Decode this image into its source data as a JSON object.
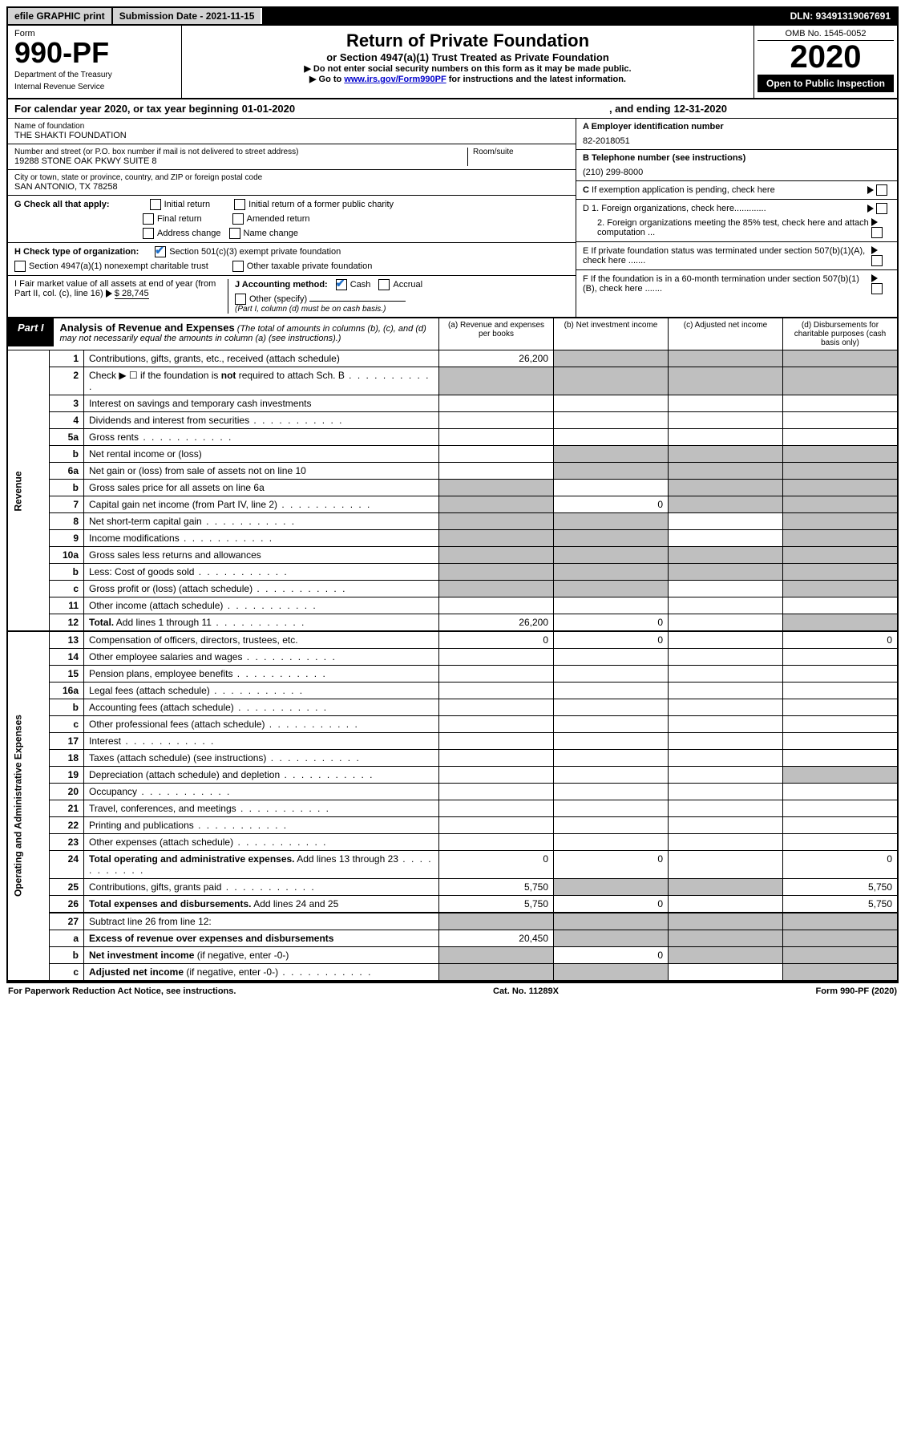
{
  "top": {
    "efile": "efile GRAPHIC print",
    "submission": "Submission Date - 2021-11-15",
    "dln": "DLN: 93491319067691"
  },
  "header": {
    "form_label": "Form",
    "form_number": "990-PF",
    "dept": "Department of the Treasury",
    "irs": "Internal Revenue Service",
    "title": "Return of Private Foundation",
    "subtitle": "or Section 4947(a)(1) Trust Treated as Private Foundation",
    "instr1": "▶ Do not enter social security numbers on this form as it may be made public.",
    "instr2_pre": "▶ Go to ",
    "instr2_link": "www.irs.gov/Form990PF",
    "instr2_post": " for instructions and the latest information.",
    "omb": "OMB No. 1545-0052",
    "year": "2020",
    "open": "Open to Public Inspection"
  },
  "calyear": {
    "pre": "For calendar year 2020, or tax year beginning ",
    "begin": "01-01-2020",
    "mid": " , and ending ",
    "end": "12-31-2020"
  },
  "entity": {
    "name_label": "Name of foundation",
    "name": "THE SHAKTI FOUNDATION",
    "addr_label": "Number and street (or P.O. box number if mail is not delivered to street address)",
    "addr": "19288 STONE OAK PKWY SUITE 8",
    "room_label": "Room/suite",
    "city_label": "City or town, state or province, country, and ZIP or foreign postal code",
    "city": "SAN ANTONIO, TX  78258",
    "ein_label": "A Employer identification number",
    "ein": "82-2018051",
    "phone_label": "B Telephone number (see instructions)",
    "phone": "(210) 299-8000",
    "c_label": "C If exemption application is pending, check here",
    "d1": "D 1. Foreign organizations, check here.............",
    "d2": "2. Foreign organizations meeting the 85% test, check here and attach computation ...",
    "e": "E  If private foundation status was terminated under section 507(b)(1)(A), check here .......",
    "f": "F  If the foundation is in a 60-month termination under section 507(b)(1)(B), check here .......",
    "g_label": "G Check all that apply:",
    "g_initial": "Initial return",
    "g_initial_former": "Initial return of a former public charity",
    "g_final": "Final return",
    "g_amended": "Amended return",
    "g_address": "Address change",
    "g_name": "Name change",
    "h_label": "H Check type of organization:",
    "h_501c3": "Section 501(c)(3) exempt private foundation",
    "h_4947": "Section 4947(a)(1) nonexempt charitable trust",
    "h_other": "Other taxable private foundation",
    "i_label": "I Fair market value of all assets at end of year (from Part II, col. (c), line 16)",
    "i_val": "$  28,745",
    "j_label": "J Accounting method:",
    "j_cash": "Cash",
    "j_accrual": "Accrual",
    "j_other": "Other (specify)",
    "j_note": "(Part I, column (d) must be on cash basis.)"
  },
  "part1": {
    "tab": "Part I",
    "title": "Analysis of Revenue and Expenses",
    "note": " (The total of amounts in columns (b), (c), and (d) may not necessarily equal the amounts in column (a) (see instructions).)",
    "col_a": "(a)  Revenue and expenses per books",
    "col_b": "(b)  Net investment income",
    "col_c": "(c)  Adjusted net income",
    "col_d": "(d)  Disbursements for charitable purposes (cash basis only)"
  },
  "sections": {
    "revenue": "Revenue",
    "expenses": "Operating and Administrative Expenses"
  },
  "rows": [
    {
      "n": "1",
      "d": "Contributions, gifts, grants, etc., received (attach schedule)",
      "a": "26,200",
      "sb": true,
      "sc": true,
      "sd": true
    },
    {
      "n": "2",
      "d": "Check ▶ ☐ if the foundation is <b>not</b> required to attach Sch. B",
      "nod": true,
      "sa": true,
      "sb": true,
      "sc": true,
      "sd": true,
      "dots": true
    },
    {
      "n": "3",
      "d": "Interest on savings and temporary cash investments"
    },
    {
      "n": "4",
      "d": "Dividends and interest from securities",
      "dots": true
    },
    {
      "n": "5a",
      "d": "Gross rents",
      "dots": true
    },
    {
      "n": "b",
      "d": "Net rental income or (loss)",
      "sa": false,
      "sb": true,
      "sc": true,
      "sd": true,
      "under": true
    },
    {
      "n": "6a",
      "d": "Net gain or (loss) from sale of assets not on line 10",
      "sb": true,
      "sc": true,
      "sd": true
    },
    {
      "n": "b",
      "d": "Gross sales price for all assets on line 6a",
      "sa": true,
      "sc": true,
      "sd": true,
      "under": true
    },
    {
      "n": "7",
      "d": "Capital gain net income (from Part IV, line 2)",
      "dots": true,
      "b": "0",
      "sa": true,
      "sc": true,
      "sd": true
    },
    {
      "n": "8",
      "d": "Net short-term capital gain",
      "dots": true,
      "sa": true,
      "sb": true,
      "sd": true
    },
    {
      "n": "9",
      "d": "Income modifications",
      "dots": true,
      "sa": true,
      "sb": true,
      "sd": true
    },
    {
      "n": "10a",
      "d": "Gross sales less returns and allowances",
      "sa": true,
      "sb": true,
      "sc": true,
      "sd": true,
      "under": true
    },
    {
      "n": "b",
      "d": "Less: Cost of goods sold",
      "dots": true,
      "sa": true,
      "sb": true,
      "sc": true,
      "sd": true,
      "under": true
    },
    {
      "n": "c",
      "d": "Gross profit or (loss) (attach schedule)",
      "dots": true,
      "sa": true,
      "sb": true,
      "sd": true
    },
    {
      "n": "11",
      "d": "Other income (attach schedule)",
      "dots": true
    },
    {
      "n": "12",
      "d": "<b>Total.</b> Add lines 1 through 11",
      "dots": true,
      "a": "26,200",
      "b": "0",
      "sd": true,
      "thick": true
    }
  ],
  "exp_rows": [
    {
      "n": "13",
      "d": "Compensation of officers, directors, trustees, etc.",
      "a": "0",
      "b": "0",
      "dv": "0"
    },
    {
      "n": "14",
      "d": "Other employee salaries and wages",
      "dots": true
    },
    {
      "n": "15",
      "d": "Pension plans, employee benefits",
      "dots": true
    },
    {
      "n": "16a",
      "d": "Legal fees (attach schedule)",
      "dots": true
    },
    {
      "n": "b",
      "d": "Accounting fees (attach schedule)",
      "dots": true
    },
    {
      "n": "c",
      "d": "Other professional fees (attach schedule)",
      "dots": true
    },
    {
      "n": "17",
      "d": "Interest",
      "dots": true
    },
    {
      "n": "18",
      "d": "Taxes (attach schedule) (see instructions)",
      "dots": true
    },
    {
      "n": "19",
      "d": "Depreciation (attach schedule) and depletion",
      "dots": true,
      "sd": true
    },
    {
      "n": "20",
      "d": "Occupancy",
      "dots": true
    },
    {
      "n": "21",
      "d": "Travel, conferences, and meetings",
      "dots": true
    },
    {
      "n": "22",
      "d": "Printing and publications",
      "dots": true
    },
    {
      "n": "23",
      "d": "Other expenses (attach schedule)",
      "dots": true
    },
    {
      "n": "24",
      "d": "<b>Total operating and administrative expenses.</b> Add lines 13 through 23",
      "dots": true,
      "a": "0",
      "b": "0",
      "dv": "0"
    },
    {
      "n": "25",
      "d": "Contributions, gifts, grants paid",
      "dots": true,
      "a": "5,750",
      "sb": true,
      "sc": true,
      "dv": "5,750"
    },
    {
      "n": "26",
      "d": "<b>Total expenses and disbursements.</b> Add lines 24 and 25",
      "a": "5,750",
      "b": "0",
      "dv": "5,750",
      "thick": true
    },
    {
      "n": "27",
      "d": "Subtract line 26 from line 12:",
      "sa": true,
      "sb": true,
      "sc": true,
      "sd": true
    },
    {
      "n": "a",
      "d": "<b>Excess of revenue over expenses and disbursements</b>",
      "a": "20,450",
      "sb": true,
      "sc": true,
      "sd": true
    },
    {
      "n": "b",
      "d": "<b>Net investment income</b> (if negative, enter -0-)",
      "sa": true,
      "b": "0",
      "sc": true,
      "sd": true
    },
    {
      "n": "c",
      "d": "<b>Adjusted net income</b> (if negative, enter -0-)",
      "dots": true,
      "sa": true,
      "sb": true,
      "sd": true,
      "thick": true
    }
  ],
  "footer": {
    "left": "For Paperwork Reduction Act Notice, see instructions.",
    "mid": "Cat. No. 11289X",
    "right": "Form 990-PF (2020)"
  }
}
